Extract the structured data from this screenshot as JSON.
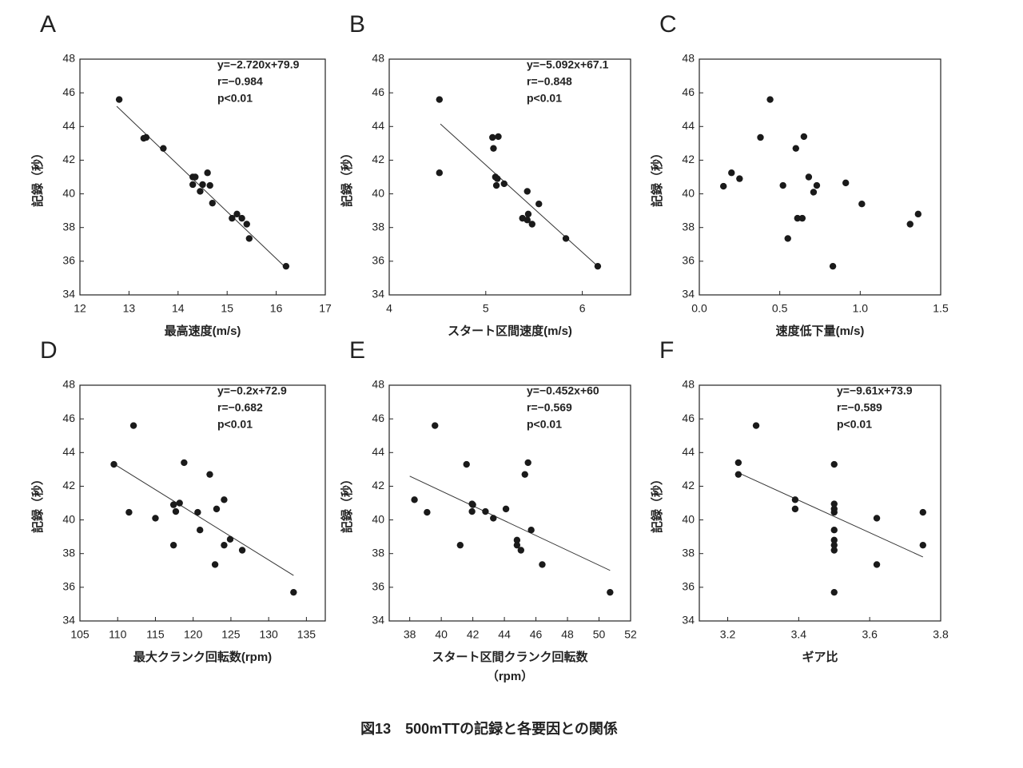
{
  "chart_data": [
    {
      "type": "scatter",
      "label": "A",
      "xlabel": [
        "最高速度(m/s)"
      ],
      "ylabel": "記録（秒）",
      "annotations": [
        "y=−2.720x+79.9",
        "r=−0.984",
        "p<0.01"
      ],
      "color": "#1a1a1a",
      "x": [
        12.8,
        13.3,
        13.35,
        13.7,
        14.3,
        14.35,
        14.3,
        14.45,
        14.5,
        14.6,
        14.65,
        14.7,
        15.1,
        15.2,
        15.3,
        15.4,
        15.45,
        16.2
      ],
      "y": [
        45.6,
        43.3,
        43.35,
        42.7,
        41.0,
        41.0,
        40.55,
        40.15,
        40.55,
        41.25,
        40.5,
        39.45,
        38.55,
        38.8,
        38.55,
        38.2,
        37.35,
        35.7
      ],
      "fit": {
        "x": [
          12.75,
          16.2
        ],
        "y": [
          45.2,
          35.6
        ]
      },
      "xlim": [
        12,
        17
      ],
      "xticks": [
        12,
        13,
        14,
        15,
        16,
        17
      ],
      "ylim": [
        34,
        48
      ],
      "yticks": [
        34,
        36,
        38,
        40,
        42,
        44,
        46,
        48
      ]
    },
    {
      "type": "scatter",
      "label": "B",
      "xlabel": [
        "スタート区間速度(m/s)"
      ],
      "ylabel": "記録（秒）",
      "annotations": [
        "y=−5.092x+67.1",
        "r=−0.848",
        "p<0.01"
      ],
      "color": "#1a1a1a",
      "x": [
        4.52,
        4.52,
        5.07,
        5.13,
        5.08,
        5.1,
        5.12,
        5.11,
        5.19,
        5.43,
        5.44,
        5.38,
        5.43,
        5.48,
        5.55,
        5.83,
        6.16
      ],
      "y": [
        45.6,
        41.25,
        43.35,
        43.4,
        42.7,
        41.0,
        40.9,
        40.5,
        40.6,
        40.15,
        38.8,
        38.55,
        38.45,
        38.2,
        39.4,
        37.35,
        35.7
      ],
      "fit": {
        "x": [
          4.53,
          6.16
        ],
        "y": [
          44.15,
          35.7
        ]
      },
      "xlim": [
        4,
        6.5
      ],
      "xticks": [
        4,
        5,
        6
      ],
      "ylim": [
        34,
        48
      ],
      "yticks": [
        34,
        36,
        38,
        40,
        42,
        44,
        46,
        48
      ]
    },
    {
      "type": "scatter",
      "label": "C",
      "xlabel": [
        "速度低下量(m/s)"
      ],
      "ylabel": "記録（秒）",
      "annotations": [],
      "color": "#1a1a1a",
      "x": [
        0.15,
        0.2,
        0.25,
        0.38,
        0.44,
        0.52,
        0.55,
        0.6,
        0.61,
        0.64,
        0.65,
        0.68,
        0.71,
        0.73,
        0.83,
        0.91,
        1.01,
        1.31,
        1.36
      ],
      "y": [
        40.45,
        41.25,
        40.9,
        43.35,
        45.6,
        40.5,
        37.35,
        42.7,
        38.55,
        38.55,
        43.4,
        41.0,
        40.1,
        40.5,
        35.7,
        40.65,
        39.4,
        38.2,
        38.8
      ],
      "xlim": [
        0,
        1.5
      ],
      "xticks": [
        {
          "value": 0,
          "label": "0.0"
        },
        0.5,
        {
          "value": 1,
          "label": "1.0"
        },
        1.5
      ],
      "ylim": [
        34,
        48
      ],
      "yticks": [
        34,
        36,
        38,
        40,
        42,
        44,
        46,
        48
      ]
    },
    {
      "type": "scatter",
      "label": "D",
      "xlabel": [
        "最大クランク回転数(rpm)"
      ],
      "ylabel": "記録（秒）",
      "annotations": [
        "y=−0.2x+72.9",
        "r=−0.682",
        "p<0.01"
      ],
      "color": "#1a1a1a",
      "x": [
        109.5,
        112.1,
        111.5,
        115,
        117.4,
        117.4,
        117.7,
        118.2,
        118.8,
        120.6,
        120.9,
        122.2,
        122.9,
        123.1,
        124.1,
        124.1,
        124.9,
        126.5,
        133.3
      ],
      "y": [
        43.3,
        45.6,
        40.45,
        40.1,
        38.5,
        40.9,
        40.5,
        41.0,
        43.4,
        40.45,
        39.4,
        42.7,
        37.35,
        40.65,
        41.2,
        38.5,
        38.85,
        38.2,
        35.7
      ],
      "fit": {
        "x": [
          109.6,
          133.3
        ],
        "y": [
          43.3,
          36.7
        ]
      },
      "xlim": [
        105,
        137.5
      ],
      "xticks": [
        105,
        110,
        115,
        120,
        125,
        130,
        135
      ],
      "ylim": [
        34,
        48
      ],
      "yticks": [
        34,
        36,
        38,
        40,
        42,
        44,
        46,
        48
      ]
    },
    {
      "type": "scatter",
      "label": "E",
      "xlabel": [
        "スタート区間クランク回転数",
        "（rpm）"
      ],
      "ylabel": "記録（秒）",
      "annotations": [
        "y=−0.452x+60",
        "r=−0.569",
        "p<0.01"
      ],
      "color": "#1a1a1a",
      "x": [
        38.3,
        39.1,
        39.6,
        41.2,
        41.6,
        41.95,
        42,
        41.95,
        42.8,
        43.3,
        44.1,
        44.8,
        44.8,
        45.05,
        45.3,
        45.5,
        45.7,
        46.4,
        50.7
      ],
      "y": [
        41.2,
        40.45,
        45.6,
        38.5,
        43.3,
        40.95,
        40.9,
        40.5,
        40.5,
        40.1,
        40.65,
        38.8,
        38.5,
        38.2,
        42.7,
        43.4,
        39.4,
        37.35,
        35.7
      ],
      "fit": {
        "x": [
          38.0,
          50.7
        ],
        "y": [
          42.6,
          37.0
        ]
      },
      "xlim": [
        36.7,
        52
      ],
      "xticks": [
        38,
        40,
        42,
        44,
        46,
        48,
        50,
        52
      ],
      "ylim": [
        34,
        48
      ],
      "yticks": [
        34,
        36,
        38,
        40,
        42,
        44,
        46,
        48
      ]
    },
    {
      "type": "scatter",
      "label": "F",
      "xlabel": [
        "ギア比"
      ],
      "ylabel": "記録（秒）",
      "annotations": [
        "y=−9.61x+73.9",
        "r=−0.589",
        "p<0.01"
      ],
      "color": "#1a1a1a",
      "x": [
        3.23,
        3.23,
        3.28,
        3.39,
        3.39,
        3.5,
        3.5,
        3.5,
        3.5,
        3.5,
        3.5,
        3.5,
        3.5,
        3.5,
        3.62,
        3.62,
        3.75,
        3.75
      ],
      "y": [
        43.4,
        42.7,
        45.6,
        41.2,
        40.65,
        43.3,
        40.95,
        40.65,
        40.45,
        39.4,
        38.8,
        38.5,
        38.2,
        35.7,
        40.1,
        37.35,
        40.45,
        38.5
      ],
      "fit": {
        "x": [
          3.23,
          3.75
        ],
        "y": [
          42.8,
          37.8
        ]
      },
      "xlim": [
        3.12,
        3.8
      ],
      "xticks": [
        3.2,
        3.4,
        3.6,
        3.8
      ],
      "ylim": [
        34,
        48
      ],
      "yticks": [
        34,
        36,
        38,
        40,
        42,
        44,
        46,
        48
      ]
    }
  ],
  "caption": "図13　500mTTの記録と各要因との関係"
}
